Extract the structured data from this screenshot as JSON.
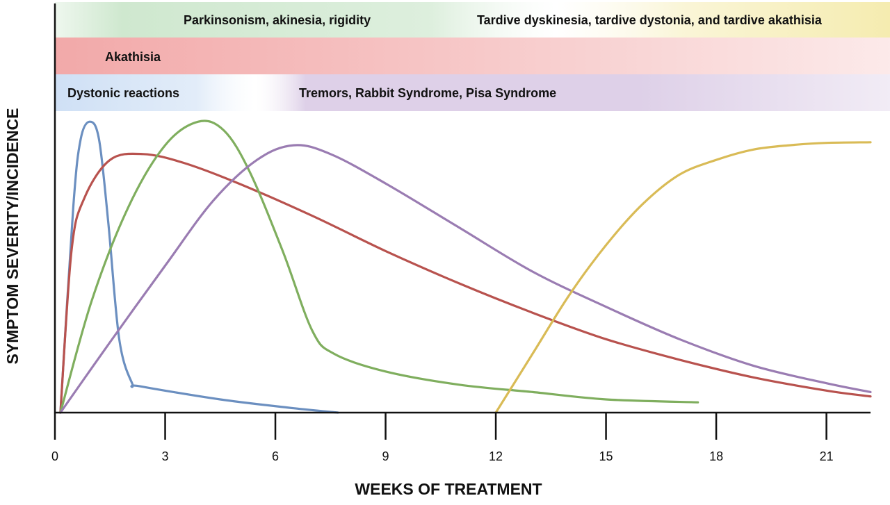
{
  "chart_data": {
    "type": "line",
    "title": "",
    "xlabel": "WEEKS OF TREATMENT",
    "ylabel": "SYMPTOM SEVERITY/INCIDENCE",
    "xlim": [
      0,
      22.2
    ],
    "ylim": [
      0,
      1
    ],
    "x_ticks": [
      "0",
      "3",
      "6",
      "9",
      "12",
      "15",
      "18",
      "21"
    ],
    "y_ticks": [],
    "grid": false,
    "legend": "none",
    "bands": [
      {
        "label": "Parkinsonism, akinesia, rigidity",
        "color": "#cfe8cf"
      },
      {
        "label": "Tardive dyskinesia, tardive dystonia, and tardive akathisia",
        "color": "#f5ecb0"
      },
      {
        "label": "Akathisia",
        "color": "#f2a9a9"
      },
      {
        "label": "Dystonic reactions",
        "color": "#cfe0f5"
      },
      {
        "label": "Tremors, Rabbit Syndrome, Pisa Syndrome",
        "color": "#d8c8e4"
      }
    ],
    "series": [
      {
        "color": "#6b8fc0",
        "points": [
          [
            0.15,
            0
          ],
          [
            0.5,
            0.7
          ],
          [
            0.7,
            0.93
          ],
          [
            0.95,
            0.99
          ],
          [
            1.2,
            0.93
          ],
          [
            1.45,
            0.65
          ],
          [
            1.75,
            0.25
          ],
          [
            2.1,
            0.1
          ],
          [
            2.3,
            0.09
          ],
          [
            4.5,
            0.045
          ],
          [
            6.5,
            0.015
          ],
          [
            7.7,
            0
          ]
        ]
      },
      {
        "color": "#b8524e",
        "points": [
          [
            0.15,
            0
          ],
          [
            0.45,
            0.55
          ],
          [
            0.8,
            0.73
          ],
          [
            1.5,
            0.86
          ],
          [
            2.4,
            0.88
          ],
          [
            3.5,
            0.85
          ],
          [
            5,
            0.78
          ],
          [
            7,
            0.67
          ],
          [
            9,
            0.55
          ],
          [
            11,
            0.44
          ],
          [
            13,
            0.34
          ],
          [
            15,
            0.25
          ],
          [
            17,
            0.18
          ],
          [
            19,
            0.12
          ],
          [
            21,
            0.075
          ],
          [
            22.2,
            0.055
          ]
        ]
      },
      {
        "color": "#7fae5e",
        "points": [
          [
            0.15,
            0
          ],
          [
            1,
            0.38
          ],
          [
            2,
            0.7
          ],
          [
            3,
            0.91
          ],
          [
            3.9,
            0.99
          ],
          [
            4.6,
            0.96
          ],
          [
            5.3,
            0.82
          ],
          [
            6.2,
            0.55
          ],
          [
            7,
            0.28
          ],
          [
            7.6,
            0.2
          ],
          [
            9,
            0.14
          ],
          [
            11,
            0.095
          ],
          [
            13,
            0.07
          ],
          [
            15,
            0.045
          ],
          [
            17.5,
            0.035
          ]
        ]
      },
      {
        "color": "#9a7cb2",
        "points": [
          [
            0.15,
            0
          ],
          [
            1.5,
            0.24
          ],
          [
            3,
            0.5
          ],
          [
            4.3,
            0.72
          ],
          [
            5.5,
            0.86
          ],
          [
            6.5,
            0.91
          ],
          [
            7.5,
            0.88
          ],
          [
            9,
            0.78
          ],
          [
            11,
            0.63
          ],
          [
            13,
            0.48
          ],
          [
            15,
            0.36
          ],
          [
            17,
            0.25
          ],
          [
            19,
            0.16
          ],
          [
            21,
            0.1
          ],
          [
            22.2,
            0.07
          ]
        ]
      },
      {
        "color": "#d9bb56",
        "points": [
          [
            12,
            0
          ],
          [
            13,
            0.2
          ],
          [
            14,
            0.4
          ],
          [
            15,
            0.57
          ],
          [
            16,
            0.71
          ],
          [
            17,
            0.81
          ],
          [
            18,
            0.86
          ],
          [
            19,
            0.895
          ],
          [
            20,
            0.91
          ],
          [
            21,
            0.918
          ],
          [
            22.2,
            0.92
          ]
        ]
      }
    ]
  }
}
